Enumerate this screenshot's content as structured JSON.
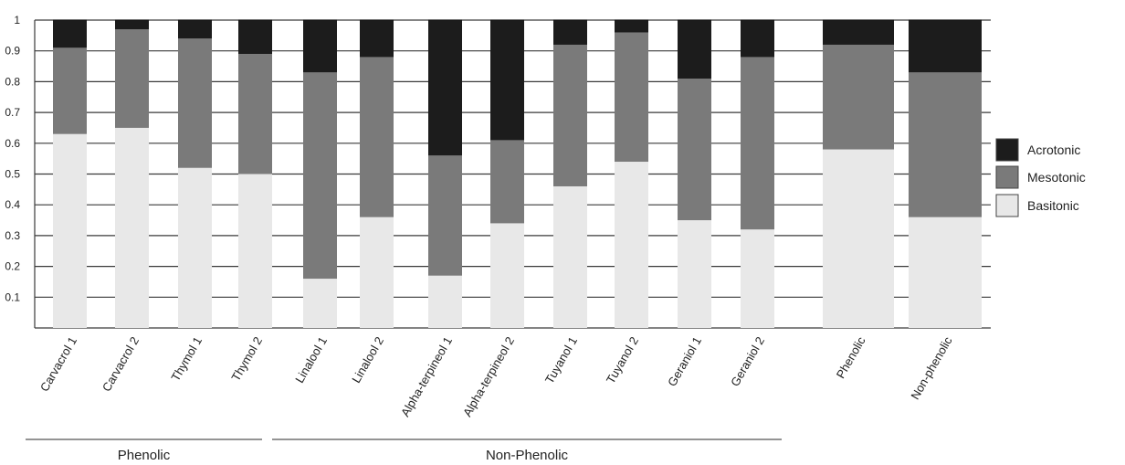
{
  "chart_data": {
    "type": "bar",
    "stacked": true,
    "categories": [
      "Carvacrol 1",
      "Carvacrol 2",
      "Thymol 1",
      "Thymol 2",
      "Linalool 1",
      "Linalool 2",
      "Alpha-terpineol 1",
      "Alpha-terpineol 2",
      "Tuyanol 1",
      "Tuyanol 2",
      "Geraniol 1",
      "Geraniol 2",
      "Phenolic",
      "Non-phenolic"
    ],
    "series": [
      {
        "name": "Basitonic",
        "color": "#e8e8e8",
        "values": [
          0.63,
          0.65,
          0.52,
          0.5,
          0.16,
          0.36,
          0.17,
          0.34,
          0.46,
          0.54,
          0.35,
          0.32,
          0.58,
          0.36
        ]
      },
      {
        "name": "Mesotonic",
        "color": "#7a7a7a",
        "values": [
          0.28,
          0.32,
          0.42,
          0.39,
          0.67,
          0.52,
          0.39,
          0.27,
          0.46,
          0.42,
          0.46,
          0.56,
          0.34,
          0.47
        ]
      },
      {
        "name": "Acrotonic",
        "color": "#1c1c1c",
        "values": [
          0.09,
          0.03,
          0.06,
          0.11,
          0.17,
          0.12,
          0.44,
          0.39,
          0.08,
          0.04,
          0.19,
          0.12,
          0.08,
          0.17
        ]
      }
    ],
    "ylim": [
      0,
      1
    ],
    "yticks": [
      "1",
      "0.9",
      "0.8",
      "0.7",
      "0.6",
      "0.5",
      "0.4",
      "0.3",
      "0.2",
      "0.1"
    ],
    "grid": true,
    "legend_position": "right",
    "legend": [
      "Acrotonic",
      "Mesotonic",
      "Basitonic"
    ],
    "groups": [
      {
        "label": "Phenolic",
        "from": 0,
        "to": 3
      },
      {
        "label": "Non-Phenolic",
        "from": 4,
        "to": 11
      }
    ],
    "title": "",
    "xlabel": "",
    "ylabel": ""
  }
}
